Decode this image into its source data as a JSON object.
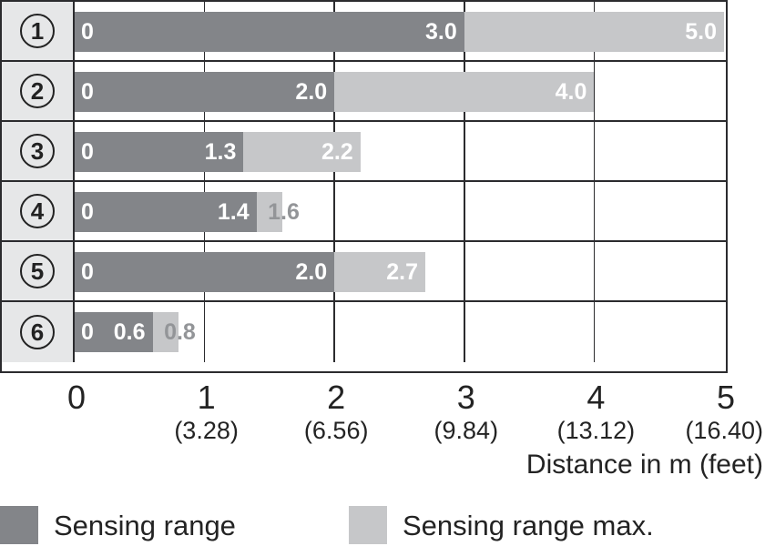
{
  "chart_data": {
    "type": "bar",
    "orientation": "horizontal",
    "title": "",
    "xlabel": "Distance in m (feet)",
    "xlim": [
      0,
      5
    ],
    "grid": true,
    "legend_position": "bottom",
    "x_ticks": [
      {
        "m": 0,
        "label": "0",
        "feet": ""
      },
      {
        "m": 1,
        "label": "1",
        "feet": "(3.28)"
      },
      {
        "m": 2,
        "label": "2",
        "feet": "(6.56)"
      },
      {
        "m": 3,
        "label": "3",
        "feet": "(9.84)"
      },
      {
        "m": 4,
        "label": "4",
        "feet": "(13.12)"
      },
      {
        "m": 5,
        "label": "5",
        "feet": "(16.40)"
      }
    ],
    "rows": [
      {
        "id": "1",
        "zero_label": "0",
        "sensing": 3.0,
        "sensing_label": "3.0",
        "max": 5.0,
        "max_label": "5.0",
        "max_label_style": "inside"
      },
      {
        "id": "2",
        "zero_label": "0",
        "sensing": 2.0,
        "sensing_label": "2.0",
        "max": 4.0,
        "max_label": "4.0",
        "max_label_style": "inside"
      },
      {
        "id": "3",
        "zero_label": "0",
        "sensing": 1.3,
        "sensing_label": "1.3",
        "max": 2.2,
        "max_label": "2.2",
        "max_label_style": "inside"
      },
      {
        "id": "4",
        "zero_label": "0",
        "sensing": 1.4,
        "sensing_label": "1.4",
        "max": 1.6,
        "max_label": "1.6",
        "max_label_style": "outside-gray"
      },
      {
        "id": "5",
        "zero_label": "0",
        "sensing": 2.0,
        "sensing_label": "2.0",
        "max": 2.7,
        "max_label": "2.7",
        "max_label_style": "inside"
      },
      {
        "id": "6",
        "zero_label": "0",
        "sensing": 0.6,
        "sensing_label": "0.6",
        "max": 0.8,
        "max_label": "0.8",
        "max_label_style": "outside-gray"
      }
    ],
    "legend": [
      {
        "label": "Sensing range",
        "color": "#838589"
      },
      {
        "label": "Sensing range max.",
        "color": "#c6c7c9"
      }
    ]
  },
  "colors": {
    "bar_dark": "#838589",
    "bar_light": "#c6c7c9",
    "id_column_bg": "#e6e7e8",
    "line": "#2b2b2e",
    "gray_value_text": "#939598",
    "bar_value_text": "#ffffff",
    "axis_text": "#232323"
  }
}
